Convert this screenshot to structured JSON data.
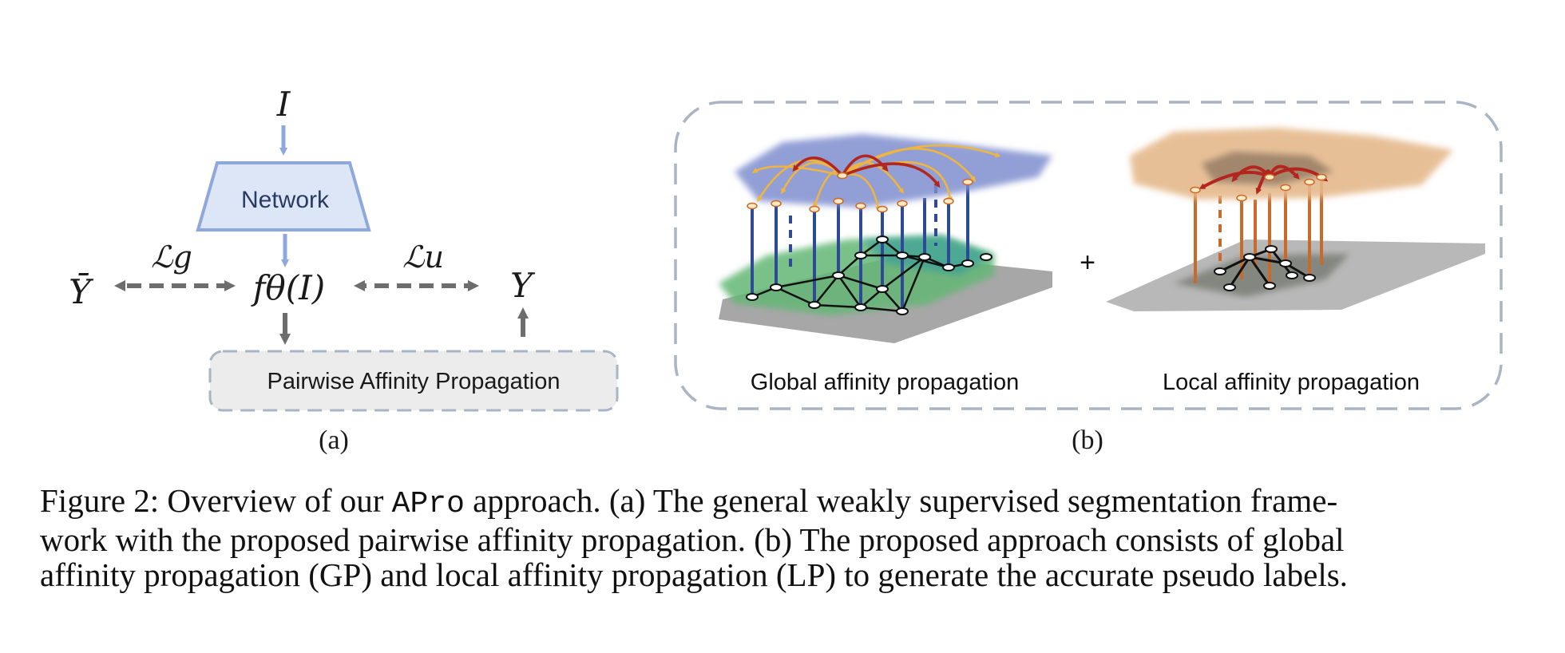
{
  "panel_a": {
    "input_symbol": "I",
    "network_label": "Network",
    "output_expr": "fθ(I)",
    "left_target": "Ȳ",
    "right_target": "Y",
    "loss_g": "ℒg",
    "loss_u": "ℒu",
    "pap_label": "Pairwise Affinity Propagation",
    "sublabel": "(a)"
  },
  "panel_b": {
    "global_label": "Global affinity propagation",
    "local_label": "Local affinity propagation",
    "plus": "+",
    "sublabel": "(b)"
  },
  "caption": {
    "line1_a": "Figure 2: Overview of our ",
    "line1_code": "APro",
    "line1_b": " approach. (a) The general weakly supervised segmentation frame-",
    "line2": "work with the proposed pairwise affinity propagation. (b) The proposed approach consists of global",
    "line3": "affinity propagation (GP) and local affinity propagation (LP) to generate the accurate pseudo labels."
  },
  "colors": {
    "network_fill": "#dce6f6",
    "network_stroke": "#8fa8dc",
    "arrow_blue": "#8fa8dc",
    "arrow_gray": "#6d6d6d",
    "dashed_box": "#a9b4c4",
    "pap_fill": "#ececec",
    "global_top": "#7f8fcf",
    "global_bottom": "#5fb16d",
    "global_pillars": "#2f4a94",
    "local_top": "#e5b98c",
    "local_pillars": "#c86a2a",
    "red_arrow": "#b3261e",
    "yellow_arrow": "#f0b53c"
  }
}
